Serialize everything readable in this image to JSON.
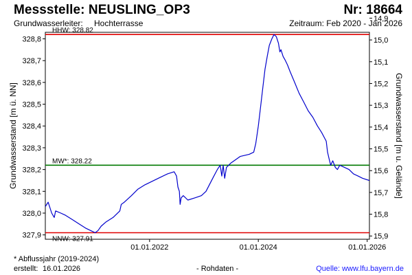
{
  "header": {
    "title": "Messstelle: NEUSLING_OP3",
    "number": "Nr: 18664",
    "aquifer_label": "Grundwasserleiter:",
    "aquifer_value": "Hochterrasse",
    "period": "Zeitraum: Feb 2020 - Jan 2026"
  },
  "footer": {
    "footnote": "* Abflussjahr (2019-2024)",
    "created_label": "erstellt:",
    "created_date": "16.01.2026",
    "raw_data": "- Rohdaten -",
    "source": "Quelle: www.lfu.bayern.de"
  },
  "chart_data": {
    "type": "line",
    "title": "",
    "ylabel": "Grundwasserstand [m ü. NN]",
    "y2label": "Grundwasserstand [m u. Gelände]",
    "ylim": [
      327.88,
      328.83
    ],
    "y2lim": [
      15.915,
      14.965
    ],
    "yticks": [
      "327,9",
      "328,0",
      "328,1",
      "328,2",
      "328,3",
      "328,4",
      "328,5",
      "328,6",
      "328,7",
      "328,8"
    ],
    "y2ticks": [
      "14,9",
      "15,0",
      "15,1",
      "15,2",
      "15,3",
      "15,4",
      "15,5",
      "15,6",
      "15,7",
      "15,8",
      "15,9"
    ],
    "xlim": [
      "2020-02-01",
      "2026-01-16"
    ],
    "xticks": [
      {
        "date": "2022-01-01",
        "label": "01.01.2022"
      },
      {
        "date": "2024-01-01",
        "label": "01.01.2024"
      },
      {
        "date": "2026-01-01",
        "label": "01.01.2026"
      }
    ],
    "grid": false,
    "colors": {
      "series": "#0000cc",
      "extreme": "#e00000",
      "mean": "#007a00",
      "axis": "#000000"
    },
    "reference_lines": [
      {
        "label": "HHW: 328.82",
        "value": 328.82,
        "kind": "extreme",
        "label_pos": "above"
      },
      {
        "label": "MW*: 328.22",
        "value": 328.22,
        "kind": "mean",
        "label_pos": "above"
      },
      {
        "label": "NNW: 327.91",
        "value": 327.91,
        "kind": "extreme",
        "label_pos": "below"
      }
    ],
    "series": [
      {
        "points": [
          [
            "2020-02-01",
            328.03
          ],
          [
            "2020-02-20",
            328.05
          ],
          [
            "2020-03-15",
            328.0
          ],
          [
            "2020-04-01",
            327.98
          ],
          [
            "2020-04-10",
            328.01
          ],
          [
            "2020-05-15",
            328.0
          ],
          [
            "2020-06-15",
            327.99
          ],
          [
            "2020-08-01",
            327.97
          ],
          [
            "2020-09-15",
            327.95
          ],
          [
            "2020-11-01",
            327.93
          ],
          [
            "2020-12-01",
            327.92
          ],
          [
            "2021-01-01",
            327.91
          ],
          [
            "2021-01-20",
            327.92
          ],
          [
            "2021-02-10",
            327.94
          ],
          [
            "2021-03-15",
            327.96
          ],
          [
            "2021-05-01",
            327.98
          ],
          [
            "2021-06-15",
            328.01
          ],
          [
            "2021-06-25",
            328.04
          ],
          [
            "2021-07-15",
            328.05
          ],
          [
            "2021-09-01",
            328.08
          ],
          [
            "2021-10-15",
            328.11
          ],
          [
            "2021-12-01",
            328.13
          ],
          [
            "2022-01-01",
            328.14
          ],
          [
            "2022-03-01",
            328.16
          ],
          [
            "2022-05-01",
            328.18
          ],
          [
            "2022-06-15",
            328.19
          ],
          [
            "2022-07-01",
            328.17
          ],
          [
            "2022-07-10",
            328.12
          ],
          [
            "2022-07-20",
            328.1
          ],
          [
            "2022-07-25",
            328.04
          ],
          [
            "2022-08-01",
            328.07
          ],
          [
            "2022-08-15",
            328.08
          ],
          [
            "2022-09-15",
            328.06
          ],
          [
            "2022-11-01",
            328.07
          ],
          [
            "2022-12-15",
            328.08
          ],
          [
            "2023-01-15",
            328.1
          ],
          [
            "2023-03-01",
            328.16
          ],
          [
            "2023-04-01",
            328.2
          ],
          [
            "2023-04-20",
            328.22
          ],
          [
            "2023-05-01",
            328.17
          ],
          [
            "2023-05-10",
            328.22
          ],
          [
            "2023-05-20",
            328.16
          ],
          [
            "2023-06-01",
            328.21
          ],
          [
            "2023-07-01",
            328.23
          ],
          [
            "2023-09-01",
            328.26
          ],
          [
            "2023-11-01",
            328.27
          ],
          [
            "2023-12-01",
            328.28
          ],
          [
            "2023-12-15",
            328.32
          ],
          [
            "2024-01-01",
            328.4
          ],
          [
            "2024-01-15",
            328.48
          ],
          [
            "2024-02-01",
            328.58
          ],
          [
            "2024-02-15",
            328.66
          ],
          [
            "2024-03-01",
            328.72
          ],
          [
            "2024-03-15",
            328.77
          ],
          [
            "2024-04-01",
            328.8
          ],
          [
            "2024-04-15",
            328.82
          ],
          [
            "2024-05-01",
            328.81
          ],
          [
            "2024-05-15",
            328.78
          ],
          [
            "2024-05-25",
            328.74
          ],
          [
            "2024-06-01",
            328.75
          ],
          [
            "2024-06-15",
            328.72
          ],
          [
            "2024-07-01",
            328.7
          ],
          [
            "2024-07-15",
            328.68
          ],
          [
            "2024-08-01",
            328.65
          ],
          [
            "2024-09-01",
            328.6
          ],
          [
            "2024-10-01",
            328.55
          ],
          [
            "2024-11-01",
            328.51
          ],
          [
            "2024-12-01",
            328.47
          ],
          [
            "2025-01-01",
            328.44
          ],
          [
            "2025-02-01",
            328.4
          ],
          [
            "2025-03-01",
            328.37
          ],
          [
            "2025-04-01",
            328.33
          ],
          [
            "2025-04-10",
            328.28
          ],
          [
            "2025-04-20",
            328.25
          ],
          [
            "2025-05-01",
            328.22
          ],
          [
            "2025-05-15",
            328.24
          ],
          [
            "2025-06-01",
            328.21
          ],
          [
            "2025-06-15",
            328.2
          ],
          [
            "2025-07-01",
            328.22
          ],
          [
            "2025-08-01",
            328.21
          ],
          [
            "2025-09-01",
            328.2
          ],
          [
            "2025-10-01",
            328.18
          ],
          [
            "2025-11-01",
            328.17
          ],
          [
            "2025-12-01",
            328.16
          ],
          [
            "2026-01-15",
            328.15
          ]
        ]
      }
    ]
  }
}
